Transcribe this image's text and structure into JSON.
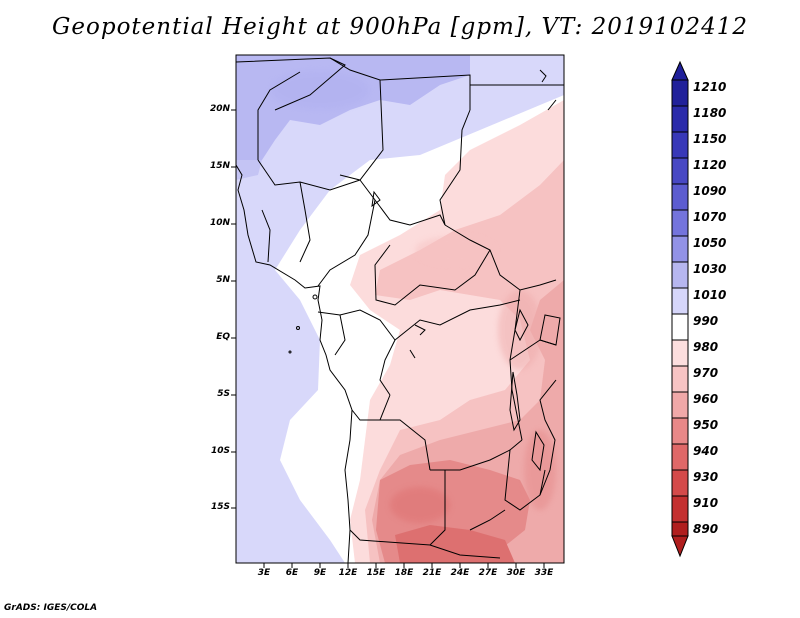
{
  "title": "Geopotential Height at 900hPa [gpm], VT: 2019102412",
  "credit": "GrADS: IGES/COLA",
  "map": {
    "lat_labels": [
      "20N",
      "15N",
      "10N",
      "5N",
      "EQ",
      "5S",
      "10S",
      "15S"
    ],
    "lon_labels": [
      "3E",
      "6E",
      "9E",
      "12E",
      "15E",
      "18E",
      "21E",
      "24E",
      "27E",
      "30E",
      "33E"
    ]
  },
  "colorbar": {
    "levels": [
      "1210",
      "1180",
      "1150",
      "1120",
      "1090",
      "1070",
      "1050",
      "1030",
      "1010",
      "990",
      "980",
      "970",
      "960",
      "950",
      "940",
      "930",
      "910",
      "890"
    ],
    "colors": [
      "#20209a",
      "#2a2aaa",
      "#3838b8",
      "#4848c4",
      "#5c5cd0",
      "#7474dc",
      "#9292e6",
      "#b6b6f0",
      "#d6d6fa",
      "#ffffff",
      "#fcdede",
      "#f7c4c4",
      "#f0a8a8",
      "#e88888",
      "#df6868",
      "#d44a4a",
      "#c43030",
      "#b01e1e"
    ]
  }
}
